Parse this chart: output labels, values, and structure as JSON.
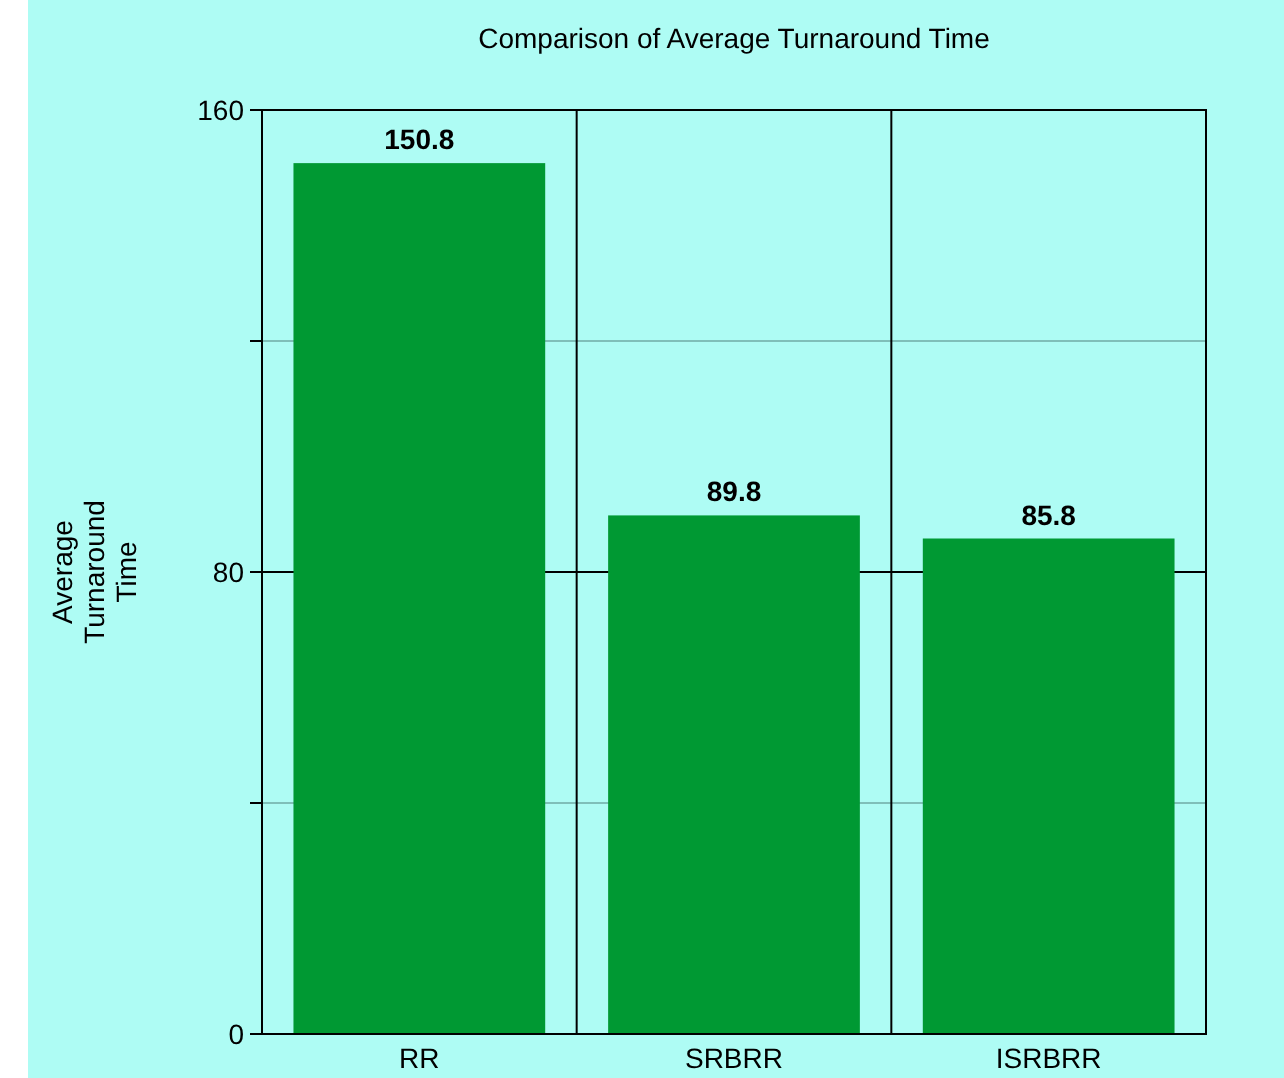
{
  "chart_data": {
    "type": "bar",
    "title": "Comparison of Average Turnaround Time",
    "ylabel": "Average Turnaround Time",
    "categories": [
      "RR",
      "SRBRR",
      "ISRBRR"
    ],
    "values": [
      150.8,
      89.8,
      85.8
    ],
    "color": "#009933",
    "data_labels": true,
    "ylim": [
      0,
      160
    ],
    "yticks": [
      0,
      {
        "value": 40,
        "label": null
      },
      80,
      {
        "value": 120,
        "label": null
      },
      160
    ],
    "grid": true
  }
}
